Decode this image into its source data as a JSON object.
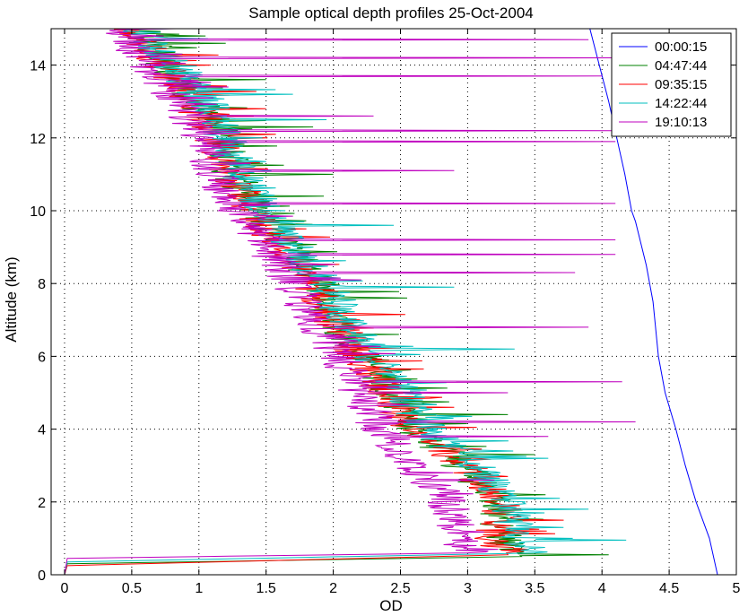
{
  "chart_data": {
    "type": "line",
    "title": "Sample optical depth profiles 25-Oct-2004",
    "xlabel": "OD",
    "ylabel": "Altitude (km)",
    "xlim": [
      -0.1,
      5.0
    ],
    "ylim": [
      0,
      15
    ],
    "xticks": [
      "0",
      "0.5",
      "1",
      "1.5",
      "2",
      "2.5",
      "3",
      "3.5",
      "4",
      "4.5",
      "5"
    ],
    "xtick_values": [
      0,
      0.5,
      1,
      1.5,
      2,
      2.5,
      3,
      3.5,
      4,
      4.5,
      5
    ],
    "yticks": [
      "0",
      "2",
      "4",
      "6",
      "8",
      "10",
      "12",
      "14"
    ],
    "ytick_values": [
      0,
      2,
      4,
      6,
      8,
      10,
      12,
      14
    ],
    "grid": true,
    "legend_position": "top-right",
    "series": [
      {
        "name": "00:00:15",
        "color": "#0000ff",
        "style": "smooth",
        "points": [
          [
            4.86,
            0
          ],
          [
            4.8,
            1
          ],
          [
            4.7,
            2
          ],
          [
            4.62,
            3
          ],
          [
            4.55,
            4
          ],
          [
            4.47,
            5
          ],
          [
            4.42,
            6
          ],
          [
            4.38,
            7.5
          ],
          [
            4.33,
            8.5
          ],
          [
            4.25,
            9.7
          ],
          [
            4.22,
            10
          ],
          [
            4.17,
            11
          ],
          [
            4.11,
            12
          ],
          [
            4.05,
            13
          ],
          [
            3.98,
            14
          ],
          [
            3.91,
            15
          ]
        ]
      },
      {
        "name": "04:47:44",
        "color": "#008000",
        "style": "noisy",
        "points": [
          [
            0.0,
            0
          ],
          [
            0.02,
            0.3
          ],
          [
            3.4,
            0.5
          ],
          [
            3.25,
            1
          ],
          [
            3.25,
            2
          ],
          [
            2.95,
            3
          ],
          [
            2.6,
            4
          ],
          [
            2.42,
            5
          ],
          [
            2.25,
            6
          ],
          [
            2.0,
            7
          ],
          [
            1.9,
            8
          ],
          [
            1.65,
            9
          ],
          [
            1.45,
            10
          ],
          [
            1.25,
            11
          ],
          [
            1.18,
            12
          ],
          [
            1.0,
            13
          ],
          [
            0.75,
            14
          ],
          [
            0.55,
            15
          ]
        ],
        "spikes": [
          [
            4.05,
            0.55
          ],
          [
            3.58,
            2.2
          ],
          [
            3.5,
            3.3
          ],
          [
            3.3,
            4.4
          ],
          [
            2.4,
            5.6
          ],
          [
            2.55,
            7.6
          ],
          [
            1.93,
            10.4
          ],
          [
            2.0,
            11.0
          ],
          [
            1.85,
            12.3
          ],
          [
            1.5,
            13.6
          ],
          [
            1.2,
            14.6
          ]
        ]
      },
      {
        "name": "09:35:15",
        "color": "#ff0000",
        "style": "noisy",
        "points": [
          [
            0.0,
            0
          ],
          [
            0.02,
            0.25
          ],
          [
            3.3,
            0.55
          ],
          [
            3.2,
            1
          ],
          [
            3.25,
            2
          ],
          [
            3.0,
            3
          ],
          [
            2.58,
            4
          ],
          [
            2.4,
            5
          ],
          [
            2.2,
            6
          ],
          [
            2.0,
            7
          ],
          [
            1.85,
            8
          ],
          [
            1.6,
            9
          ],
          [
            1.42,
            10
          ],
          [
            1.22,
            11
          ],
          [
            1.12,
            12
          ],
          [
            0.95,
            13
          ],
          [
            0.72,
            14
          ],
          [
            0.5,
            15
          ]
        ],
        "spikes": [
          [
            3.45,
            0.7
          ],
          [
            3.4,
            1.6
          ],
          [
            3.3,
            2.7
          ],
          [
            2.9,
            4.6
          ],
          [
            2.2,
            7.0
          ],
          [
            1.8,
            9.5
          ],
          [
            1.5,
            12.8
          ]
        ]
      },
      {
        "name": "14:22:44",
        "color": "#00bfbf",
        "style": "noisy",
        "points": [
          [
            0.0,
            0
          ],
          [
            0.02,
            0.35
          ],
          [
            3.5,
            0.6
          ],
          [
            3.35,
            1
          ],
          [
            3.3,
            2
          ],
          [
            3.05,
            3
          ],
          [
            2.7,
            4
          ],
          [
            2.5,
            5
          ],
          [
            2.3,
            6
          ],
          [
            2.1,
            7
          ],
          [
            1.95,
            8
          ],
          [
            1.7,
            9
          ],
          [
            1.5,
            10
          ],
          [
            1.3,
            11
          ],
          [
            1.2,
            12
          ],
          [
            1.05,
            13
          ],
          [
            0.8,
            14
          ],
          [
            0.55,
            15
          ]
        ],
        "spikes": [
          [
            4.18,
            0.95
          ],
          [
            3.9,
            1.8
          ],
          [
            3.6,
            3.2
          ],
          [
            3.35,
            6.2
          ],
          [
            2.9,
            7.9
          ],
          [
            2.45,
            9.6
          ],
          [
            1.95,
            12.5
          ],
          [
            1.7,
            13.2
          ]
        ]
      },
      {
        "name": "19:10:13",
        "color": "#bf00bf",
        "style": "noisy",
        "points": [
          [
            0.0,
            0
          ],
          [
            0.02,
            0.45
          ],
          [
            3.0,
            0.6
          ],
          [
            2.95,
            1
          ],
          [
            2.85,
            2
          ],
          [
            2.6,
            3
          ],
          [
            2.35,
            4
          ],
          [
            2.2,
            5
          ],
          [
            2.05,
            6
          ],
          [
            1.85,
            7
          ],
          [
            1.7,
            8
          ],
          [
            1.5,
            9
          ],
          [
            1.3,
            10
          ],
          [
            1.1,
            11
          ],
          [
            1.0,
            12
          ],
          [
            0.85,
            13
          ],
          [
            0.62,
            14
          ],
          [
            0.42,
            15
          ]
        ],
        "spikes": [
          [
            4.25,
            4.2
          ],
          [
            4.15,
            5.3
          ],
          [
            4.1,
            8.8
          ],
          [
            4.1,
            9.2
          ],
          [
            4.1,
            10.2
          ],
          [
            4.1,
            12.2
          ],
          [
            4.1,
            14.2
          ],
          [
            3.9,
            14.7
          ],
          [
            4.0,
            13.7
          ],
          [
            4.1,
            11.9
          ],
          [
            3.9,
            6.8
          ],
          [
            3.8,
            8.3
          ],
          [
            3.3,
            5.0
          ],
          [
            3.6,
            3.8
          ],
          [
            3.2,
            2.6
          ],
          [
            2.9,
            11.1
          ],
          [
            2.3,
            12.6
          ]
        ]
      }
    ]
  }
}
